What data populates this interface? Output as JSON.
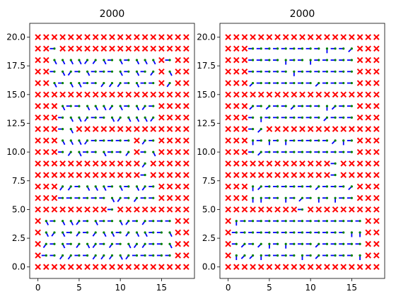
{
  "chart_data": [
    {
      "type": "scatter",
      "title": "2000",
      "xlabel": "",
      "ylabel": "",
      "xlim": [
        -1,
        19
      ],
      "ylim": [
        -1,
        21.2
      ],
      "xticks": [
        0,
        5,
        10,
        15
      ],
      "yticks": [
        0.0,
        2.5,
        5.0,
        7.5,
        10.0,
        12.5,
        15.0,
        17.5,
        20.0
      ],
      "ytick_labels": [
        "0.0",
        "2.5",
        "5.0",
        "7.5",
        "10.0",
        "12.5",
        "15.0",
        "17.5",
        "20.0"
      ],
      "grid": false,
      "marker_color": "#ff0000",
      "agent_color": "#0000ff",
      "agent_dot_color": "#008000",
      "grid_size": [
        19,
        21
      ],
      "obstacle_rows": [
        "XXXXXXXXXXXXXXXXXXX",
        "XX.XXXXXXXXXXXXXXXX",
        "XX.............X.XX",
        "XX.............X.XX",
        "XX.............X.XX",
        "XXXXXXXXXXXXXXXXXXX",
        "XXX............XXXX",
        "XXX............XXXX",
        "XXX..XXXXXXXXXXXXXX",
        "XXX.........X..XXXX",
        "XXX.........X..XXXX",
        "XXXXXXXXXXXXX.XXXXX",
        "XXXXXXXXXXXXX.XXXXX",
        "XXX............XXXX",
        "XXX............XXXX",
        "XXXXXXXXX.XXXXXXXXX",
        "X................XX",
        "X................XX",
        "X................XX",
        "X................XX",
        "XXXXXXXXXXXXXXXXXXX"
      ]
    },
    {
      "type": "scatter",
      "title": "2000",
      "xlabel": "",
      "ylabel": "",
      "xlim": [
        -1,
        19
      ],
      "ylim": [
        -1,
        21.2
      ],
      "xticks": [
        0,
        5,
        10,
        15
      ],
      "yticks": [
        0.0,
        2.5,
        5.0,
        7.5,
        10.0,
        12.5,
        15.0,
        17.5,
        20.0
      ],
      "ytick_labels": [
        "0.0",
        "2.5",
        "5.0",
        "7.5",
        "10.0",
        "12.5",
        "15.0",
        "17.5",
        "20.0"
      ],
      "grid": false,
      "marker_color": "#ff0000",
      "agent_color": "#0000ff",
      "agent_dot_color": "#008000",
      "grid_size": [
        19,
        21
      ],
      "obstacle_rows": [
        "XXXXXXXXXXXXXXXXXXX",
        "XXX.............XXX",
        "XXX.............XXX",
        "XXX.............XXX",
        "XXX.............XXX",
        "XXXXXXXXXXXXXXXXXXX",
        "XXX.............XXX",
        "XXX.............XXX",
        "XXX..XXXXXXXXXXXXXX",
        "XXX.............XXX",
        "XXX.............XXX",
        "XXXXXXXXXXXXX.XXXXX",
        "XXXXXXXXXXXXX.XXXXX",
        "XXX.............XXX",
        "XXX.............XXX",
        "XXXXXXXXX.XXXXXXXXX",
        "X................XX",
        "X................XX",
        "X................XX",
        "X................XX",
        "XXXXXXXXXXXXXXXXXXX"
      ]
    }
  ]
}
